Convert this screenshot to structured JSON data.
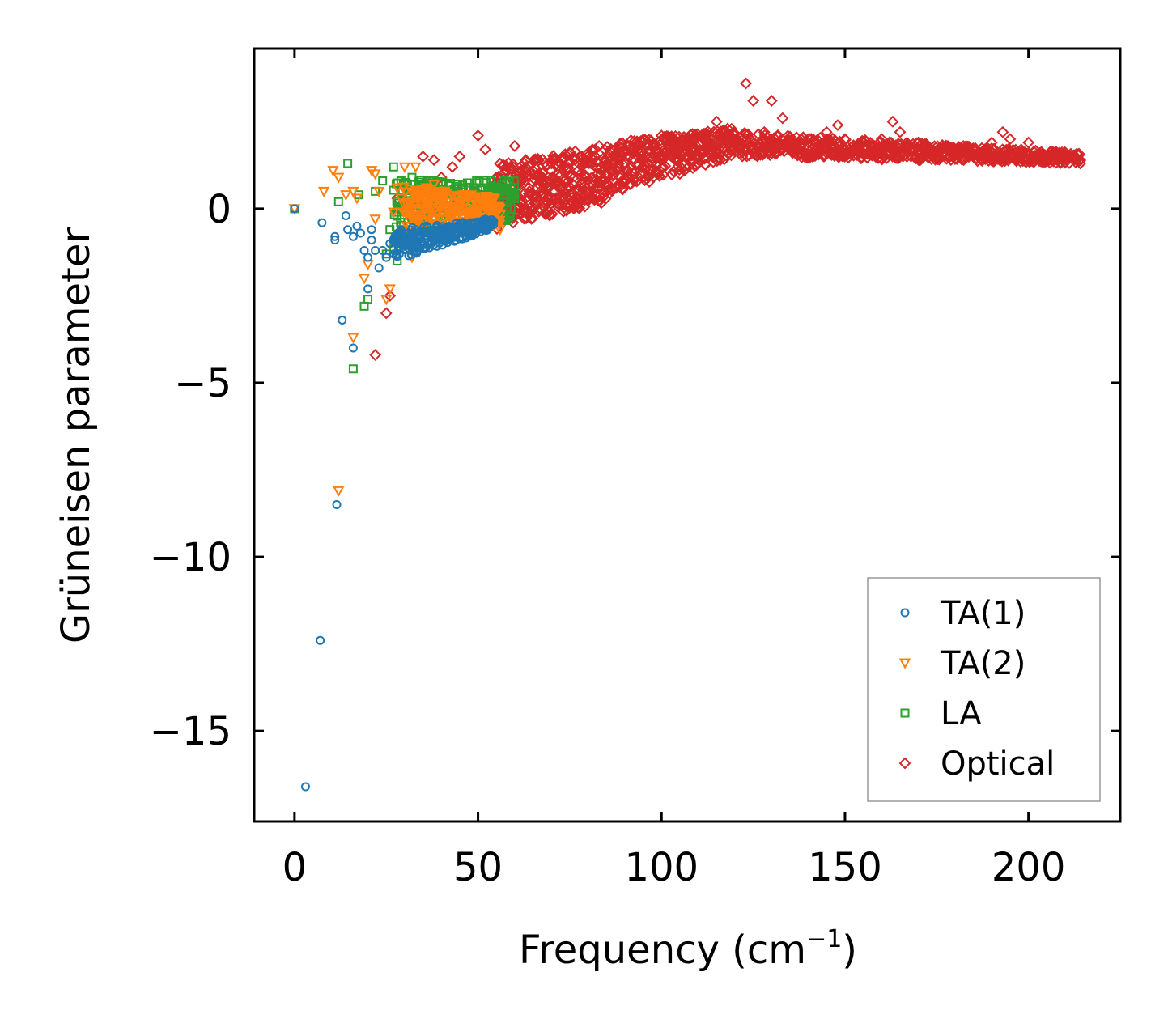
{
  "chart_data": {
    "type": "scatter",
    "title": "",
    "xlabel_main": "Frequency (cm",
    "xlabel_sup": "−1",
    "xlabel_close": ")",
    "ylabel": "Grüneisen parameter",
    "xlim": [
      -11,
      225
    ],
    "ylim": [
      -17.6,
      4.6
    ],
    "xticks": [
      0,
      50,
      100,
      150,
      200
    ],
    "xtick_labels": [
      "0",
      "50",
      "100",
      "150",
      "200"
    ],
    "yticks": [
      0,
      -5,
      -10,
      -15
    ],
    "ytick_labels": [
      "0",
      "−5",
      "−10",
      "−15"
    ],
    "grid": false,
    "legend_position": "lower-right",
    "series": [
      {
        "name": "TA(1)",
        "marker": "circle",
        "color": "#1f77b4",
        "points": [
          [
            0,
            0
          ],
          [
            3,
            -16.6
          ],
          [
            7,
            -12.4
          ],
          [
            11.5,
            -8.5
          ],
          [
            13,
            -3.2
          ],
          [
            16,
            -4.0
          ],
          [
            7.5,
            -0.4
          ],
          [
            11,
            -0.8
          ],
          [
            11,
            -0.9
          ],
          [
            14,
            -0.2
          ],
          [
            14.5,
            -0.6
          ],
          [
            16,
            -0.8
          ],
          [
            17,
            -0.5
          ],
          [
            18,
            -0.7
          ],
          [
            19,
            -1.2
          ],
          [
            20,
            -1.4
          ],
          [
            20,
            -2.3
          ],
          [
            21,
            -0.9
          ],
          [
            21,
            -0.6
          ],
          [
            22,
            -1.2
          ],
          [
            23,
            -1.7
          ],
          [
            24,
            -1.2
          ],
          [
            25,
            -1.4
          ],
          [
            26,
            -1.0
          ],
          [
            27,
            -1.3
          ],
          [
            27,
            -0.9
          ],
          [
            28,
            -1.0
          ],
          [
            29,
            -0.8
          ],
          [
            30,
            -0.9
          ],
          [
            31,
            -0.7
          ],
          [
            32,
            -0.8
          ],
          [
            33,
            -0.6
          ],
          [
            35,
            -0.7
          ],
          [
            36,
            -0.5
          ],
          [
            38,
            -0.6
          ],
          [
            40,
            -0.6
          ],
          [
            42,
            -0.5
          ],
          [
            45,
            -0.5
          ],
          [
            47,
            -0.6
          ],
          [
            48,
            -0.4
          ],
          [
            50,
            -0.5
          ],
          [
            52,
            -0.3
          ],
          [
            53,
            -0.4
          ],
          [
            54,
            -0.4
          ]
        ]
      },
      {
        "name": "TA(2)",
        "marker": "triangle-down",
        "color": "#ff7f0e",
        "points": [
          [
            0,
            0
          ],
          [
            8,
            0.5
          ],
          [
            10.5,
            1.1
          ],
          [
            12,
            -8.1
          ],
          [
            12,
            0.9
          ],
          [
            14,
            0.4
          ],
          [
            16,
            -3.7
          ],
          [
            16,
            0.5
          ],
          [
            17,
            0.3
          ],
          [
            19,
            -2.0
          ],
          [
            20,
            -1.6
          ],
          [
            21,
            1.1
          ],
          [
            22,
            1.0
          ],
          [
            22,
            -0.3
          ],
          [
            23,
            0.5
          ],
          [
            25,
            -2.6
          ],
          [
            26,
            -2.3
          ],
          [
            27,
            -0.1
          ],
          [
            28,
            0.6
          ],
          [
            29,
            0.3
          ],
          [
            30,
            1.2
          ],
          [
            31,
            0.0
          ],
          [
            32,
            -1.4
          ],
          [
            33,
            1.2
          ],
          [
            34,
            0.5
          ],
          [
            35,
            -0.4
          ],
          [
            36,
            0.0
          ],
          [
            38,
            0.7
          ],
          [
            40,
            -0.1
          ],
          [
            42,
            0.3
          ],
          [
            44,
            -0.3
          ],
          [
            46,
            0.4
          ],
          [
            48,
            -0.2
          ],
          [
            50,
            0.1
          ],
          [
            52,
            0.2
          ],
          [
            54,
            -0.4
          ],
          [
            56,
            -0.6
          ]
        ]
      },
      {
        "name": "LA",
        "marker": "square",
        "color": "#2ca02c",
        "points": [
          [
            0,
            0
          ],
          [
            12,
            0.2
          ],
          [
            14.5,
            1.3
          ],
          [
            16,
            -4.6
          ],
          [
            17.5,
            0.4
          ],
          [
            19,
            -2.8
          ],
          [
            20,
            -2.6
          ],
          [
            22,
            0.5
          ],
          [
            24,
            0.8
          ],
          [
            25,
            -1.3
          ],
          [
            26,
            -0.6
          ],
          [
            27,
            1.2
          ],
          [
            28,
            -0.8
          ],
          [
            28,
            -1.5
          ],
          [
            29,
            0.8
          ],
          [
            30,
            -0.3
          ],
          [
            31,
            0.4
          ],
          [
            32,
            0.9
          ],
          [
            33,
            -0.2
          ],
          [
            35,
            0.6
          ],
          [
            36,
            0.0
          ],
          [
            38,
            0.8
          ],
          [
            40,
            0.5
          ],
          [
            40,
            -0.2
          ],
          [
            42,
            0.7
          ],
          [
            44,
            0.1
          ],
          [
            46,
            0.6
          ],
          [
            48,
            0.4
          ],
          [
            50,
            0.3
          ],
          [
            52,
            0.6
          ],
          [
            53,
            0.5
          ],
          [
            54,
            -0.1
          ],
          [
            55,
            0.2
          ],
          [
            57,
            0.5
          ],
          [
            59,
            0.0
          ],
          [
            60,
            0.4
          ]
        ]
      },
      {
        "name": "Optical",
        "marker": "diamond",
        "color": "#d62728",
        "points": [
          [
            22,
            -4.2
          ],
          [
            25,
            -3.0
          ],
          [
            26,
            -2.5
          ],
          [
            28,
            0.3
          ],
          [
            30,
            0.6
          ],
          [
            35,
            1.5
          ],
          [
            38,
            1.4
          ],
          [
            40,
            0.9
          ],
          [
            43,
            1.2
          ],
          [
            45,
            1.5
          ],
          [
            50,
            2.1
          ],
          [
            52,
            1.7
          ],
          [
            55,
            0.9
          ],
          [
            60,
            1.8
          ],
          [
            63,
            1.4
          ],
          [
            65,
            1.1
          ],
          [
            67,
            0.9
          ],
          [
            70,
            1.3
          ],
          [
            73,
            0.5
          ],
          [
            75,
            1.3
          ],
          [
            78,
            0.6
          ],
          [
            80,
            1.6
          ],
          [
            83,
            1.8
          ],
          [
            85,
            1.0
          ],
          [
            88,
            1.1
          ],
          [
            90,
            1.6
          ],
          [
            93,
            1.9
          ],
          [
            95,
            1.4
          ],
          [
            98,
            1.8
          ],
          [
            100,
            2.1
          ],
          [
            103,
            1.5
          ],
          [
            105,
            1.0
          ],
          [
            108,
            1.9
          ],
          [
            110,
            1.3
          ],
          [
            113,
            1.8
          ],
          [
            115,
            2.5
          ],
          [
            118,
            2.3
          ],
          [
            120,
            1.9
          ],
          [
            123,
            3.6
          ],
          [
            125,
            3.1
          ],
          [
            128,
            2.2
          ],
          [
            130,
            3.1
          ],
          [
            133,
            2.6
          ],
          [
            135,
            1.9
          ],
          [
            138,
            1.8
          ],
          [
            140,
            1.9
          ],
          [
            143,
            1.7
          ],
          [
            145,
            2.2
          ],
          [
            148,
            2.4
          ],
          [
            150,
            2.0
          ],
          [
            153,
            1.7
          ],
          [
            155,
            1.9
          ],
          [
            158,
            1.8
          ],
          [
            160,
            2.0
          ],
          [
            163,
            2.5
          ],
          [
            165,
            2.2
          ],
          [
            168,
            1.5
          ],
          [
            170,
            1.9
          ],
          [
            173,
            1.7
          ],
          [
            175,
            1.6
          ],
          [
            178,
            1.8
          ],
          [
            180,
            1.6
          ],
          [
            183,
            1.8
          ],
          [
            185,
            1.5
          ],
          [
            188,
            1.7
          ],
          [
            190,
            1.9
          ],
          [
            193,
            2.2
          ],
          [
            195,
            2.0
          ],
          [
            198,
            1.7
          ],
          [
            200,
            1.9
          ],
          [
            203,
            1.6
          ],
          [
            205,
            1.5
          ],
          [
            208,
            1.4
          ],
          [
            210,
            1.5
          ],
          [
            213,
            1.4
          ]
        ]
      }
    ],
    "dense_bands": [
      {
        "series": "TA(1)",
        "x_start": 27,
        "x_end": 54,
        "steps": 80,
        "y_low_start": -1.5,
        "y_low_end": -0.6,
        "y_high_start": -0.6,
        "y_high_end": -0.3
      },
      {
        "series": "TA(2)",
        "x_start": 30,
        "x_end": 56,
        "steps": 80,
        "y_low_start": -0.6,
        "y_low_end": -0.5,
        "y_high_start": 0.7,
        "y_high_end": 0.3
      },
      {
        "series": "LA",
        "x_start": 27,
        "x_end": 60,
        "steps": 80,
        "y_low_start": -1.2,
        "y_low_end": -0.3,
        "y_high_start": 0.9,
        "y_high_end": 0.8
      },
      {
        "series": "Optical",
        "x_start": 55,
        "x_end": 85,
        "steps": 110,
        "y_low_start": -0.6,
        "y_low_end": 0.2,
        "y_high_start": 1.3,
        "y_high_end": 1.8
      },
      {
        "series": "Optical",
        "x_start": 85,
        "x_end": 120,
        "steps": 110,
        "y_low_start": 0.4,
        "y_low_end": 1.5,
        "y_high_start": 1.9,
        "y_high_end": 2.3
      },
      {
        "series": "Optical",
        "x_start": 120,
        "x_end": 214,
        "steps": 200,
        "y_low_start": 1.5,
        "y_low_end": 1.3,
        "y_high_start": 2.2,
        "y_high_end": 1.6
      }
    ]
  }
}
